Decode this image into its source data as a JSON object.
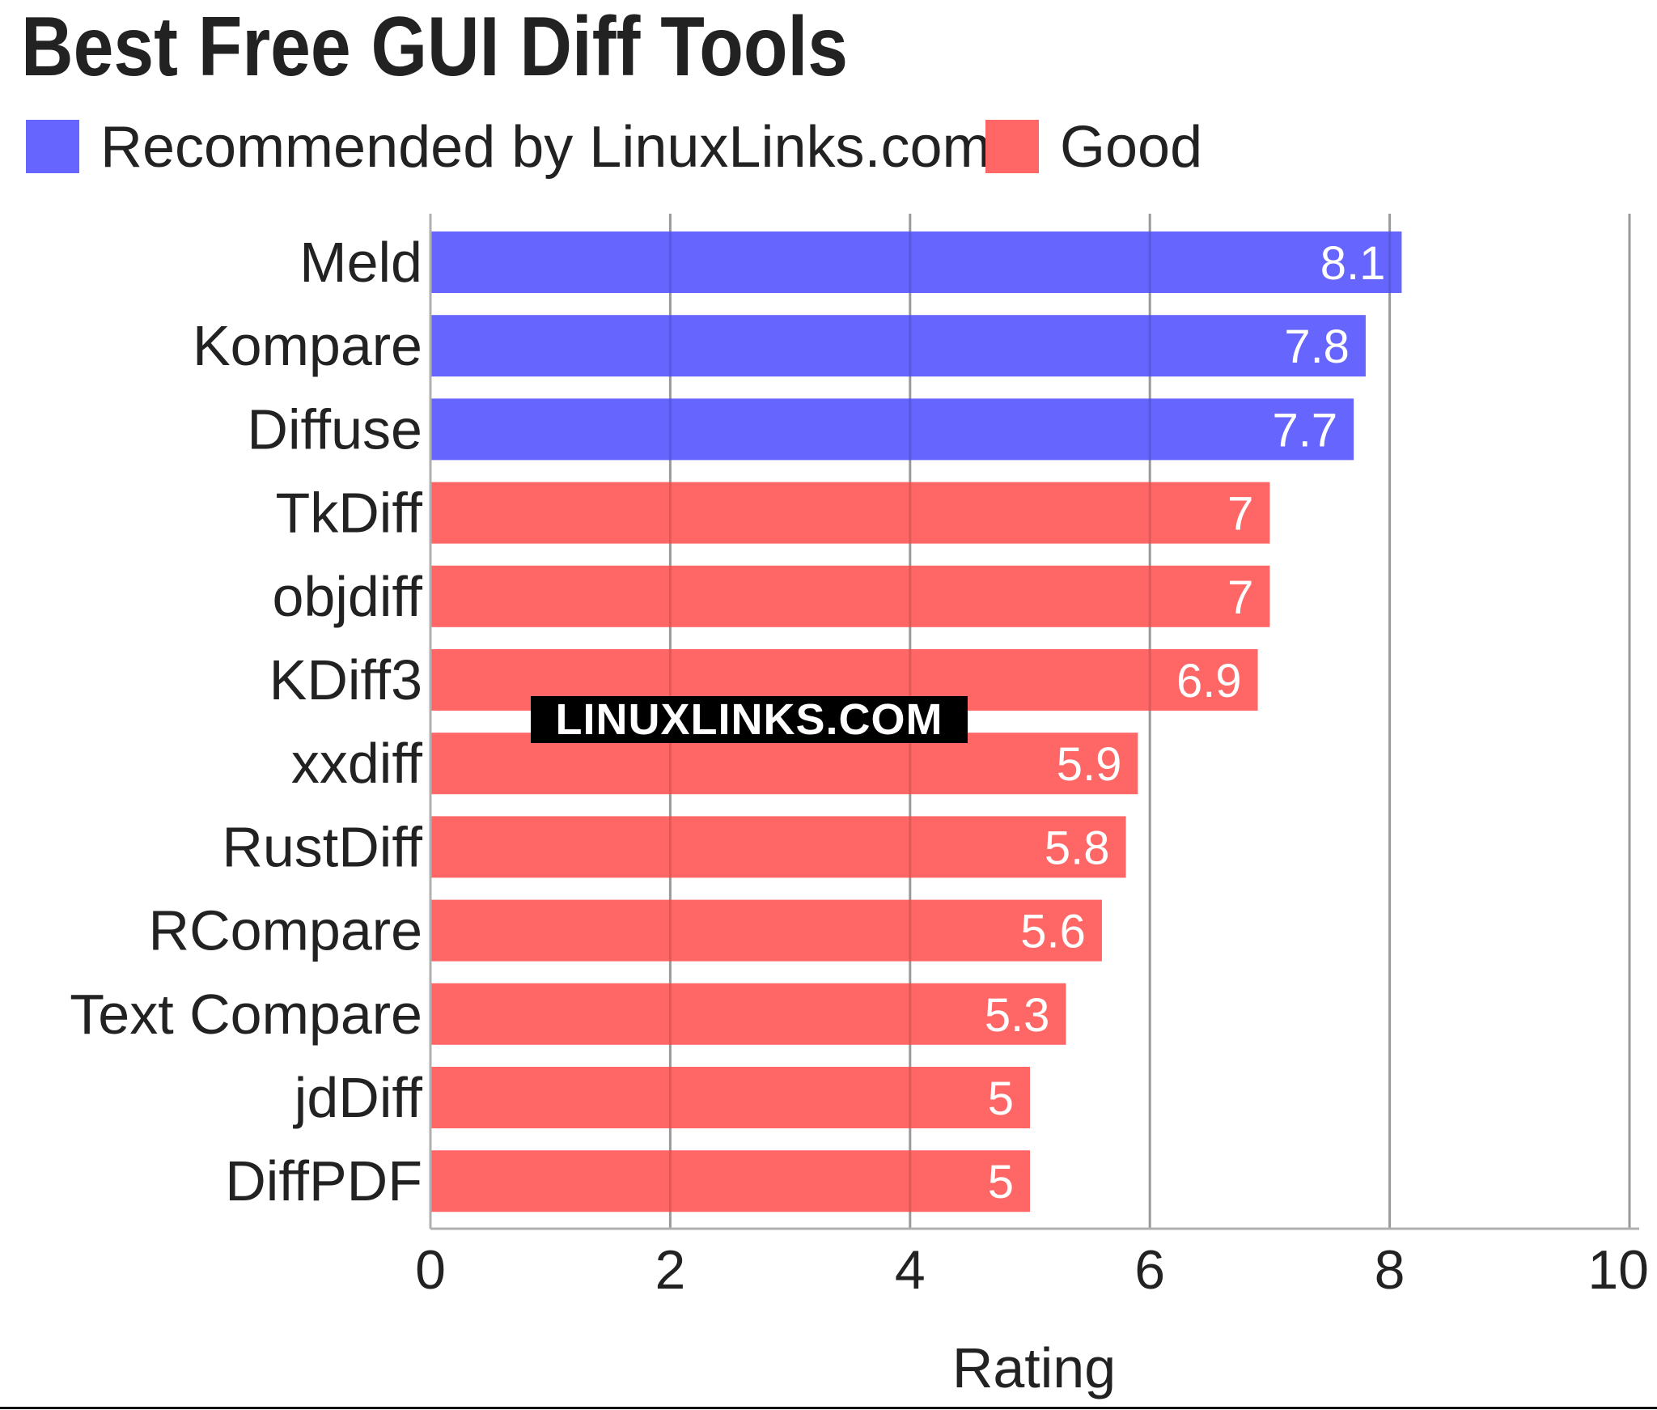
{
  "colors": {
    "recommended": "#6666ff",
    "good": "#ff6666",
    "grid": "#b0b0b0",
    "text": "#222222"
  },
  "watermark": "LINUXLINKS.COM",
  "chart_data": {
    "type": "bar",
    "orientation": "horizontal",
    "title": "Best Free GUI Diff Tools",
    "xlabel": "Rating",
    "ylabel": "",
    "xlim": [
      0,
      10
    ],
    "xticks": [
      "0",
      "2",
      "4",
      "6",
      "8",
      "10"
    ],
    "grid": true,
    "legend_position": "top-left",
    "legend": [
      {
        "name": "Recommended by LinuxLinks.com",
        "color": "#6666ff"
      },
      {
        "name": "Good",
        "color": "#ff6666"
      }
    ],
    "categories": [
      "Meld",
      "Kompare",
      "Diffuse",
      "TkDiff",
      "objdiff",
      "KDiff3",
      "xxdiff",
      "RustDiff",
      "RCompare",
      "Text Compare",
      "jdDiff",
      "DiffPDF"
    ],
    "values": [
      8.1,
      7.8,
      7.7,
      7,
      7,
      6.9,
      5.9,
      5.8,
      5.6,
      5.3,
      5,
      5
    ],
    "labels": [
      "8.1",
      "7.8",
      "7.7",
      "7",
      "7",
      "6.9",
      "5.9",
      "5.8",
      "5.6",
      "5.3",
      "5",
      "5"
    ],
    "groups": [
      "Recommended by LinuxLinks.com",
      "Recommended by LinuxLinks.com",
      "Recommended by LinuxLinks.com",
      "Good",
      "Good",
      "Good",
      "Good",
      "Good",
      "Good",
      "Good",
      "Good",
      "Good"
    ]
  }
}
